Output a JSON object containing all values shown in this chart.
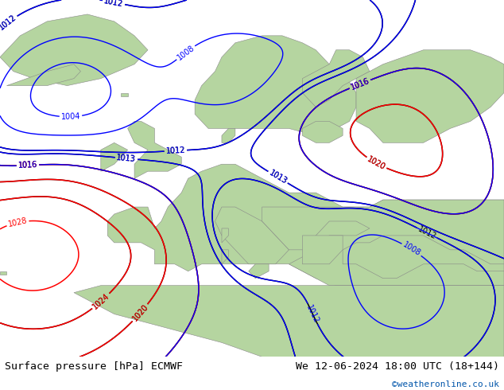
{
  "title_left": "Surface pressure [hPa] ECMWF",
  "title_right": "We 12-06-2024 18:00 UTC (18+144)",
  "copyright": "©weatheronline.co.uk",
  "sea_color": "#e8e8e8",
  "land_color": "#b5d5a0",
  "coast_color": "#888888",
  "fig_width": 6.34,
  "fig_height": 4.9,
  "dpi": 100,
  "bottom_bar_color": "#e8e8e8",
  "bottom_bar_height": 0.085,
  "title_fontsize": 9.5,
  "copyright_color": "#0055aa",
  "copyright_fontsize": 8,
  "label_fontsize": 7
}
